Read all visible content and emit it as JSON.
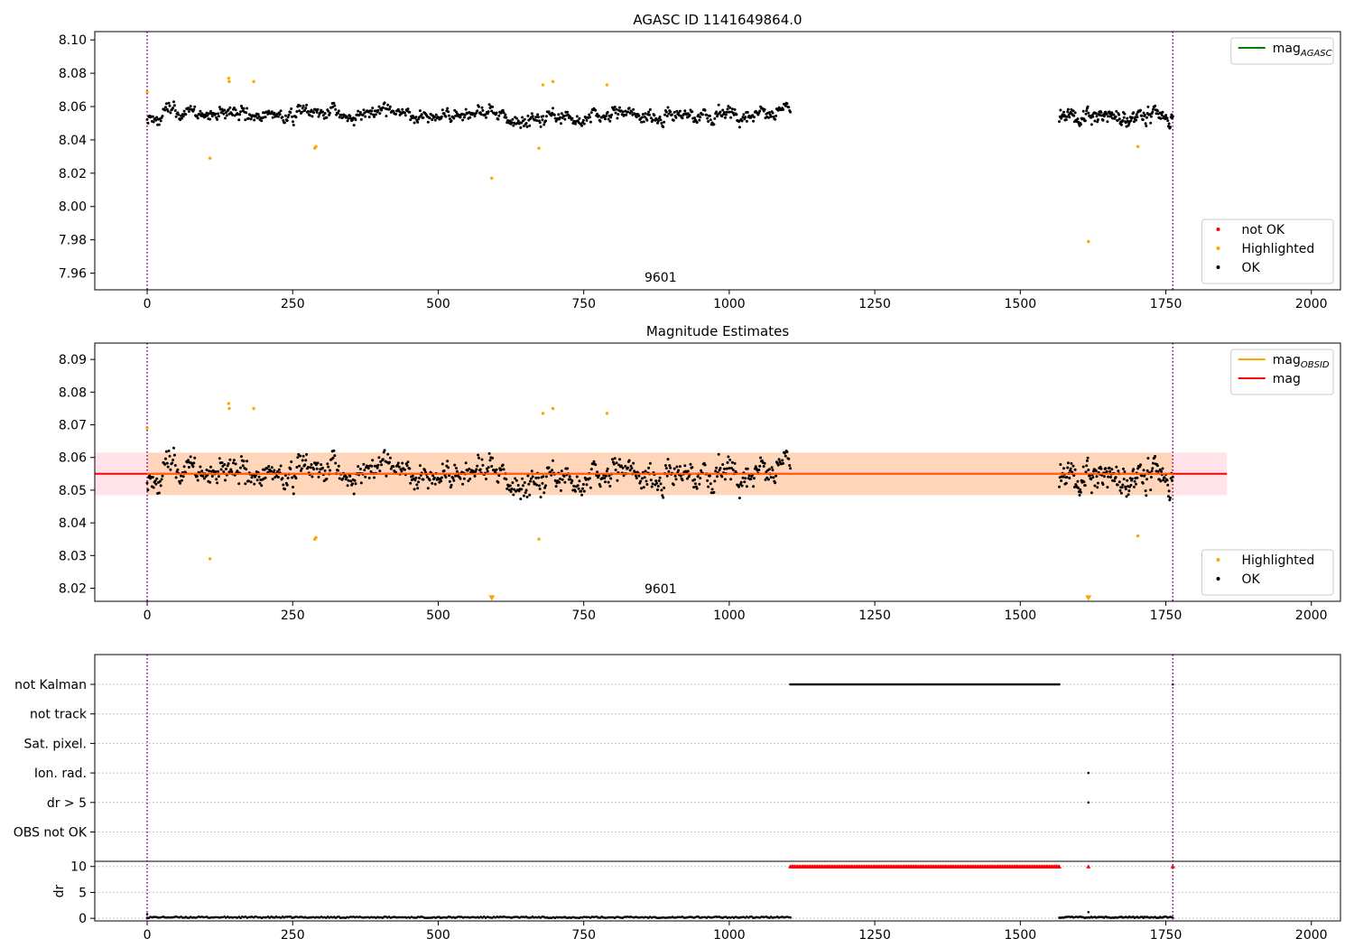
{
  "chart_data": [
    {
      "type": "scatter",
      "title": "AGASC ID 1141649864.0",
      "xlim": [
        -90,
        2050
      ],
      "ylim": [
        7.95,
        8.105
      ],
      "xticks": [
        0,
        250,
        500,
        750,
        1000,
        1250,
        1500,
        1750,
        2000
      ],
      "yticks": [
        7.96,
        7.98,
        8.0,
        8.02,
        8.04,
        8.06,
        8.08,
        8.1
      ],
      "ytick_labels": [
        "7.96",
        "7.98",
        "8.00",
        "8.02",
        "8.04",
        "8.06",
        "8.08",
        "8.10"
      ],
      "obsid_label": {
        "text": "9601",
        "x": 882,
        "y": 7.955
      },
      "vlines": [
        0,
        1762
      ],
      "legend_upper": {
        "position": "upper-right",
        "entries": [
          {
            "label": "mag",
            "sub": "AGASC",
            "color": "#008000",
            "kind": "line"
          }
        ]
      },
      "legend_lower": {
        "position": "lower-right",
        "entries": [
          {
            "label": "not OK",
            "color": "#ff0000",
            "kind": "dot"
          },
          {
            "label": "Highlighted",
            "color": "#ffa500",
            "kind": "dot"
          },
          {
            "label": "OK",
            "color": "#000000",
            "kind": "dot"
          }
        ]
      },
      "segments": [
        {
          "x0": 0,
          "x1": 1105,
          "n": 800,
          "base": 8.055,
          "noise": 0.0045
        },
        {
          "x0": 1567,
          "x1": 1762,
          "n": 180,
          "base": 8.054,
          "noise": 0.0045
        }
      ],
      "highlighted": [
        {
          "x": 0,
          "y": 8.069
        },
        {
          "x": 108,
          "y": 8.029
        },
        {
          "x": 140,
          "y": 8.077
        },
        {
          "x": 141,
          "y": 8.075
        },
        {
          "x": 183,
          "y": 8.075
        },
        {
          "x": 288,
          "y": 8.035
        },
        {
          "x": 290,
          "y": 8.036
        },
        {
          "x": 592,
          "y": 8.017
        },
        {
          "x": 673,
          "y": 8.035
        },
        {
          "x": 680,
          "y": 8.073
        },
        {
          "x": 697,
          "y": 8.075
        },
        {
          "x": 790,
          "y": 8.073
        },
        {
          "x": 1617,
          "y": 7.979
        },
        {
          "x": 1702,
          "y": 8.036
        }
      ]
    },
    {
      "type": "scatter",
      "title": "Magnitude Estimates",
      "xlim": [
        -90,
        2050
      ],
      "ylim": [
        8.016,
        8.095
      ],
      "xticks": [
        0,
        250,
        500,
        750,
        1000,
        1250,
        1500,
        1750,
        2000
      ],
      "yticks": [
        8.02,
        8.03,
        8.04,
        8.05,
        8.06,
        8.07,
        8.08,
        8.09
      ],
      "ytick_labels": [
        "8.02",
        "8.03",
        "8.04",
        "8.05",
        "8.06",
        "8.07",
        "8.08",
        "8.09"
      ],
      "obsid_label": {
        "text": "9601",
        "x": 882,
        "y": 8.0185
      },
      "vlines": [
        0,
        1762
      ],
      "mag_line": {
        "y": 8.055,
        "x0": -90,
        "x1": 1855,
        "color": "#ff0000"
      },
      "mag_band": {
        "y0": 8.0485,
        "y1": 8.0615,
        "x0": -90,
        "x1": 1855,
        "color": "#ffc0cb"
      },
      "obsid_band": {
        "y0": 8.0485,
        "y1": 8.0615,
        "x0": 0,
        "x1": 1762,
        "color": "#ffa500"
      },
      "obsid_line": {
        "y": 8.055,
        "x0": 0,
        "x1": 1762,
        "color": "#ffa500"
      },
      "legend_upper": {
        "position": "upper-right",
        "entries": [
          {
            "label": "mag",
            "sub": "OBSID",
            "color": "#ffa500",
            "kind": "line"
          },
          {
            "label": "mag",
            "sub": "",
            "color": "#ff0000",
            "kind": "line"
          }
        ]
      },
      "legend_lower": {
        "position": "lower-right",
        "entries": [
          {
            "label": "Highlighted",
            "color": "#ffa500",
            "kind": "dot"
          },
          {
            "label": "OK",
            "color": "#000000",
            "kind": "dot"
          }
        ]
      },
      "segments": [
        {
          "x0": 0,
          "x1": 1105,
          "n": 800,
          "base": 8.055,
          "noise": 0.0045
        },
        {
          "x0": 1567,
          "x1": 1762,
          "n": 180,
          "base": 8.054,
          "noise": 0.0045
        }
      ],
      "highlighted": [
        {
          "x": 0,
          "y": 8.069
        },
        {
          "x": 108,
          "y": 8.029
        },
        {
          "x": 140,
          "y": 8.0765
        },
        {
          "x": 141,
          "y": 8.075
        },
        {
          "x": 183,
          "y": 8.075
        },
        {
          "x": 288,
          "y": 8.035
        },
        {
          "x": 290,
          "y": 8.0355
        },
        {
          "x": 673,
          "y": 8.035
        },
        {
          "x": 680,
          "y": 8.0735
        },
        {
          "x": 697,
          "y": 8.075
        },
        {
          "x": 790,
          "y": 8.0735
        },
        {
          "x": 1702,
          "y": 8.036
        }
      ],
      "clipped_markers": [
        {
          "x": 592,
          "y": 8.017
        },
        {
          "x": 1617,
          "y": 8.017
        }
      ]
    },
    {
      "type": "scatter",
      "title": "",
      "xlim": [
        -90,
        2050
      ],
      "xticks": [
        0,
        250,
        500,
        750,
        1000,
        1250,
        1500,
        1750,
        2000
      ],
      "vlines": [
        0,
        1762
      ],
      "flag_rows": [
        "not Kalman",
        "not track",
        "Sat. pixel.",
        "Ion. rad.",
        "dr > 5",
        "OBS not OK"
      ],
      "flag_points": [
        {
          "row": "not Kalman",
          "x0": 1105,
          "x1": 1567,
          "n": 190
        },
        {
          "row": "not Kalman",
          "x": 1762
        },
        {
          "row": "Ion. rad.",
          "x": 1617
        },
        {
          "row": "dr > 5",
          "x": 1617
        }
      ],
      "dr_panel": {
        "ylabel": "dr",
        "ylim": [
          -0.5,
          11
        ],
        "yticks": [
          0,
          5,
          10
        ],
        "ytick_labels": [
          "0",
          "5",
          "10"
        ],
        "clipped": [
          {
            "x0": 1105,
            "x1": 1567,
            "n": 190,
            "y": 10
          },
          {
            "x": 1617,
            "y": 10
          },
          {
            "x": 1762,
            "y": 10
          }
        ],
        "normal": [
          {
            "x0": 0,
            "x1": 1105,
            "n": 400,
            "y": 0.2
          },
          {
            "x0": 1567,
            "x1": 1762,
            "n": 90,
            "y": 0.2
          }
        ],
        "extra": [
          {
            "x": 0,
            "y": 0.8
          },
          {
            "x": 1617,
            "y": 1.2
          }
        ]
      }
    }
  ]
}
